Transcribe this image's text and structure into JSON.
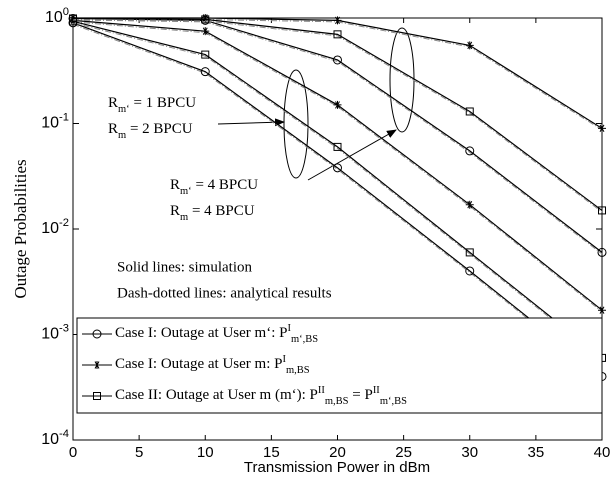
{
  "chart_data": {
    "type": "line",
    "xlabel": "Transmission Power in dBm",
    "ylabel": "Outage Probabilities",
    "x": [
      0,
      10,
      20,
      30,
      40
    ],
    "xlim": [
      0,
      40
    ],
    "xticks": [
      0,
      5,
      10,
      15,
      20,
      25,
      30,
      35,
      40
    ],
    "ylim": [
      0.0001,
      1
    ],
    "log_y": true,
    "yticks": [
      {
        "value": 1,
        "label": "10^{0}"
      },
      {
        "value": 0.1,
        "label": "10^{-1}"
      },
      {
        "value": 0.01,
        "label": "10^{-2}"
      },
      {
        "value": 0.001,
        "label": "10^{-3}"
      },
      {
        "value": 0.0001,
        "label": "10^{-4}"
      }
    ],
    "legend": "lower-left",
    "series": [
      {
        "name": "Case I: Outage at User m‘: P^{I}_{m‘,BS}",
        "marker": "circle",
        "color": "#000000",
        "values": [
          0.9,
          0.31,
          0.038,
          0.004,
          0.0004
        ]
      },
      {
        "name": "Case I: Outage at User m: P^{I}_{m,BS}",
        "marker": "star",
        "color": "#000000",
        "values": [
          0.95,
          0.75,
          0.15,
          0.017,
          0.0017
        ]
      },
      {
        "name": "Case II: Outage at User m (m‘): P^{II}_{m,BS} = P^{II}_{m‘,BS}",
        "marker": "square",
        "color": "#000000",
        "values": [
          0.93,
          0.45,
          0.06,
          0.006,
          0.0006
        ]
      },
      {
        "marker": "circle",
        "color": "#000000",
        "values": [
          0.99,
          0.95,
          0.4,
          0.055,
          0.006
        ]
      },
      {
        "marker": "star",
        "color": "#000000",
        "values": [
          1,
          1,
          0.95,
          0.55,
          0.09
        ]
      },
      {
        "marker": "square",
        "color": "#000000",
        "values": [
          0.99,
          0.97,
          0.7,
          0.13,
          0.015
        ]
      }
    ],
    "annotations": [
      "R_{m‘} = 1 BPCU",
      "R_{m} = 2 BPCU",
      "R_{m‘} = 4 BPCU",
      "R_{m} = 4 BPCU",
      "Solid lines: simulation",
      "Dash-dotted lines: analytical results"
    ]
  }
}
